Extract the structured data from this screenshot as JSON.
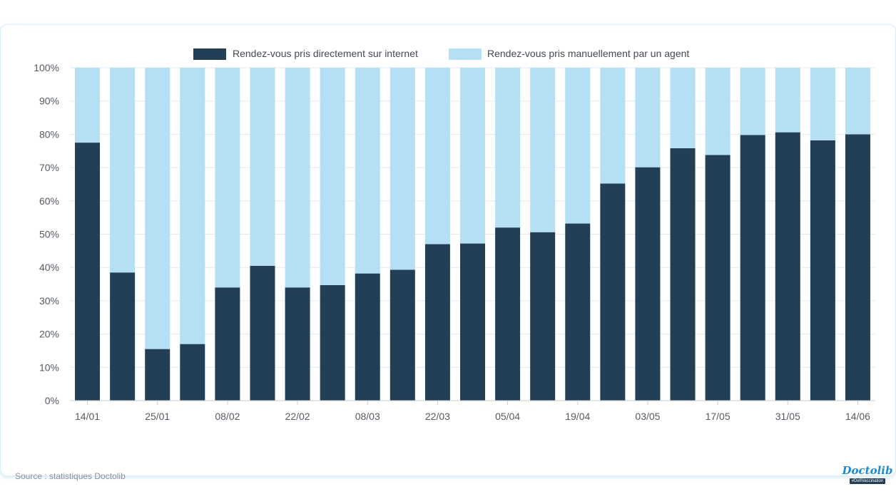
{
  "chart_data": {
    "type": "bar",
    "stacked": true,
    "title": "",
    "xlabel": "",
    "ylabel": "",
    "ylim": [
      0,
      100
    ],
    "ytick_labels": [
      "0%",
      "10%",
      "20%",
      "30%",
      "40%",
      "50%",
      "60%",
      "70%",
      "80%",
      "90%",
      "100%"
    ],
    "x_tick_labels": [
      "14/01",
      "25/01",
      "08/02",
      "22/02",
      "08/03",
      "22/03",
      "05/04",
      "19/04",
      "03/05",
      "17/05",
      "31/05",
      "14/06"
    ],
    "x_tick_every": 2,
    "bar_count": 23,
    "grid": true,
    "legend_position": "top-center",
    "series": [
      {
        "name": "Rendez-vous pris directement sur internet",
        "color": "#223f56",
        "values": [
          77.5,
          38.5,
          15.5,
          17,
          34,
          40.5,
          34,
          34.7,
          38.2,
          39.3,
          47,
          47.2,
          52,
          50.6,
          53.2,
          65.2,
          70.1,
          75.8,
          73.8,
          79.8,
          80.6,
          78.2,
          80
        ]
      },
      {
        "name": "Rendez-vous pris manuellement par un agent",
        "color": "#b5dff5",
        "values": [
          22.5,
          61.5,
          84.5,
          83,
          66,
          59.5,
          66,
          65.3,
          61.8,
          60.7,
          53,
          52.8,
          48,
          49.4,
          46.8,
          34.8,
          29.9,
          24.2,
          26.2,
          20.2,
          19.4,
          21.8,
          20
        ]
      }
    ]
  },
  "footer": {
    "source": "Source : statistiques Doctolib"
  },
  "logo": {
    "wordmark": "Doctolib",
    "tagline": "#DefiVaccination"
  }
}
